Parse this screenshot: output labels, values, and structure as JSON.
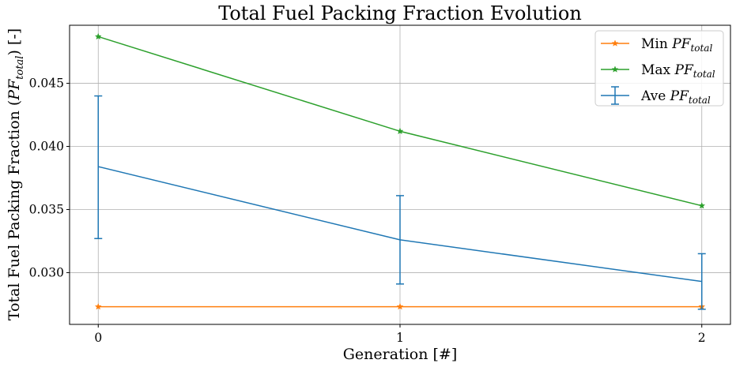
{
  "chart_data": {
    "type": "line",
    "title": "Total Fuel Packing Fraction Evolution",
    "xlabel": "Generation [#]",
    "ylabel_prefix": "Total Fuel Packing Fraction (",
    "ylabel_symbol": "PF",
    "ylabel_subscript": "total",
    "ylabel_suffix": ") [-]",
    "x": [
      0,
      1,
      2
    ],
    "x_ticks": [
      "0",
      "1",
      "2"
    ],
    "xlim": [
      -0.095,
      2.095
    ],
    "ylim": [
      0.0259,
      0.0496
    ],
    "y_ticks": [
      0.03,
      0.035,
      0.04,
      0.045
    ],
    "y_tick_labels": [
      "0.030",
      "0.035",
      "0.040",
      "0.045"
    ],
    "grid": true,
    "legend_position": "upper-right",
    "series": [
      {
        "name_prefix": "Min ",
        "name_symbol": "PF",
        "name_subscript": "total",
        "kind": "line-star",
        "color": "#ff7f0e",
        "values": [
          0.0273,
          0.0273,
          0.0273
        ]
      },
      {
        "name_prefix": "Max ",
        "name_symbol": "PF",
        "name_subscript": "total",
        "kind": "line-star",
        "color": "#2ca02c",
        "values": [
          0.0487,
          0.0412,
          0.0353
        ]
      },
      {
        "name_prefix": "Ave ",
        "name_symbol": "PF",
        "name_subscript": "total",
        "kind": "errorbar",
        "color": "#1f77b4",
        "values": [
          0.0384,
          0.0326,
          0.0293
        ],
        "err_low": [
          0.0327,
          0.0291,
          0.0271
        ],
        "err_high": [
          0.044,
          0.0361,
          0.0315
        ]
      }
    ]
  }
}
